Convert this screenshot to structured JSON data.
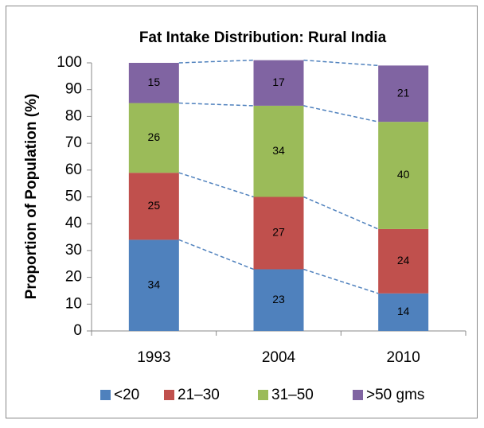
{
  "chart_data": {
    "type": "stacked_bar",
    "title": "Fat Intake Distribution: Rural India",
    "y_label": "Proportion of Population (%)",
    "categories": [
      "1993",
      "2004",
      "2010"
    ],
    "series": [
      {
        "name": "<20",
        "color": "#4f81bd",
        "values": [
          34,
          23,
          14
        ]
      },
      {
        "name": "21–30",
        "color": "#c0504d",
        "values": [
          25,
          27,
          24
        ]
      },
      {
        "name": "31–50",
        "color": "#9bbb59",
        "values": [
          26,
          34,
          40
        ]
      },
      {
        "name": ">50 gms",
        "color": "#8064a2",
        "values": [
          15,
          17,
          21
        ]
      }
    ],
    "ylim": [
      0,
      100
    ],
    "yticks": [
      0,
      10,
      20,
      30,
      40,
      50,
      60,
      70,
      80,
      90,
      100
    ],
    "legend": "bottom"
  }
}
